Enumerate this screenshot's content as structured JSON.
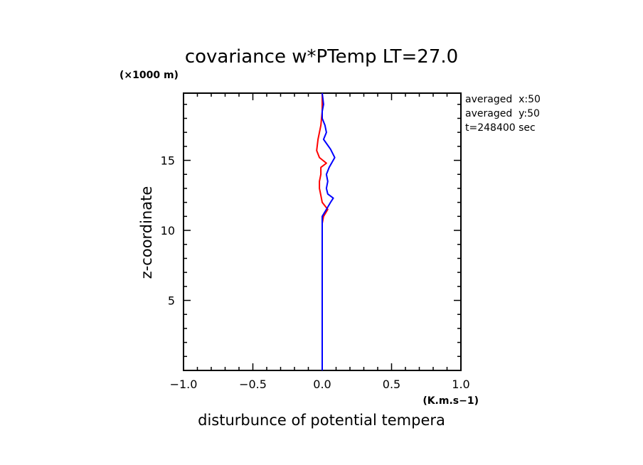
{
  "chart_data": {
    "type": "line",
    "title": "covariance w*PTemp LT=27.0",
    "xlabel": "disturbunce of potential tempera",
    "ylabel": "z-coordinate",
    "x_unit": "(K.m.s−1)",
    "y_unit": "(×1000 m)",
    "xlim": [
      -1.0,
      1.0
    ],
    "ylim": [
      0,
      19.8
    ],
    "x_ticks": [
      "−1.0",
      "−0.5",
      "0.0",
      "0.5",
      "1.0"
    ],
    "x_tick_values": [
      -1.0,
      -0.5,
      0.0,
      0.5,
      1.0
    ],
    "y_ticks": [
      "5",
      "10",
      "15"
    ],
    "y_tick_values": [
      5,
      10,
      15
    ],
    "annotations": [
      "averaged  x:50",
      "averaged  y:50",
      "t=248400 sec"
    ],
    "series": [
      {
        "color": "#ff0000",
        "points": [
          [
            0.0,
            0.0
          ],
          [
            0.0,
            2.0
          ],
          [
            0.0,
            4.0
          ],
          [
            0.0,
            6.0
          ],
          [
            0.0,
            8.0
          ],
          [
            0.0,
            9.5
          ],
          [
            0.0,
            10.5
          ],
          [
            0.01,
            11.0
          ],
          [
            0.04,
            11.5
          ],
          [
            0.0,
            12.0
          ],
          [
            -0.01,
            12.5
          ],
          [
            -0.02,
            13.0
          ],
          [
            -0.02,
            13.5
          ],
          [
            -0.01,
            14.0
          ],
          [
            -0.01,
            14.5
          ],
          [
            0.03,
            14.8
          ],
          [
            -0.02,
            15.2
          ],
          [
            -0.04,
            15.7
          ],
          [
            -0.03,
            16.5
          ],
          [
            -0.01,
            17.5
          ],
          [
            0.0,
            18.5
          ],
          [
            0.0,
            19.8
          ]
        ]
      },
      {
        "color": "#0000ff",
        "points": [
          [
            0.0,
            0.0
          ],
          [
            0.0,
            2.0
          ],
          [
            0.0,
            4.0
          ],
          [
            0.0,
            6.0
          ],
          [
            0.0,
            8.0
          ],
          [
            0.0,
            9.5
          ],
          [
            0.0,
            10.5
          ],
          [
            0.0,
            11.0
          ],
          [
            0.03,
            11.5
          ],
          [
            0.06,
            12.0
          ],
          [
            0.08,
            12.3
          ],
          [
            0.04,
            12.6
          ],
          [
            0.03,
            13.0
          ],
          [
            0.04,
            13.5
          ],
          [
            0.03,
            14.0
          ],
          [
            0.05,
            14.5
          ],
          [
            0.09,
            15.2
          ],
          [
            0.06,
            15.8
          ],
          [
            0.01,
            16.5
          ],
          [
            0.03,
            17.0
          ],
          [
            0.02,
            17.5
          ],
          [
            0.0,
            18.0
          ],
          [
            0.0,
            18.5
          ],
          [
            0.01,
            19.0
          ],
          [
            0.0,
            19.8
          ]
        ]
      }
    ]
  }
}
